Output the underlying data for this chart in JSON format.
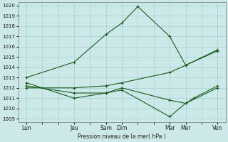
{
  "xlabel": "Pression niveau de la mer( hPa )",
  "background_color": "#cce8e8",
  "grid_color": "#99cccc",
  "line_color": "#1a5c1a",
  "ylim": [
    1009,
    1020
  ],
  "yticks": [
    1009,
    1010,
    1011,
    1012,
    1013,
    1014,
    1015,
    1016,
    1017,
    1018,
    1019,
    1020
  ],
  "x_labels": [
    "Lun",
    "Jeu",
    "Sam",
    "Dim",
    "Mar",
    "Mer",
    "Ven"
  ],
  "x_positions": [
    0,
    3,
    5,
    6,
    9,
    10,
    12
  ],
  "xlim": [
    -0.5,
    12.5
  ],
  "series": [
    {
      "x": [
        0,
        3,
        5,
        6,
        7,
        9,
        10,
        12
      ],
      "y": [
        1013.0,
        1014.5,
        1017.2,
        1018.3,
        1019.9,
        1017.0,
        1014.2,
        1015.7
      ]
    },
    {
      "x": [
        0,
        3,
        5,
        6,
        9,
        10,
        12
      ],
      "y": [
        1012.0,
        1012.0,
        1012.2,
        1012.5,
        1013.5,
        1014.2,
        1015.6
      ]
    },
    {
      "x": [
        0,
        3,
        5,
        6,
        9,
        10,
        10.5,
        12
      ],
      "y": [
        1012.2,
        1011.5,
        1011.5,
        1011.8,
        1009.2,
        1010.5,
        1011.0,
        1012.2
      ]
    },
    {
      "x": [
        0,
        3,
        5,
        6,
        9,
        10,
        12
      ],
      "y": [
        1012.5,
        1011.0,
        1011.5,
        1012.0,
        1010.8,
        1010.5,
        1012.0
      ]
    }
  ]
}
